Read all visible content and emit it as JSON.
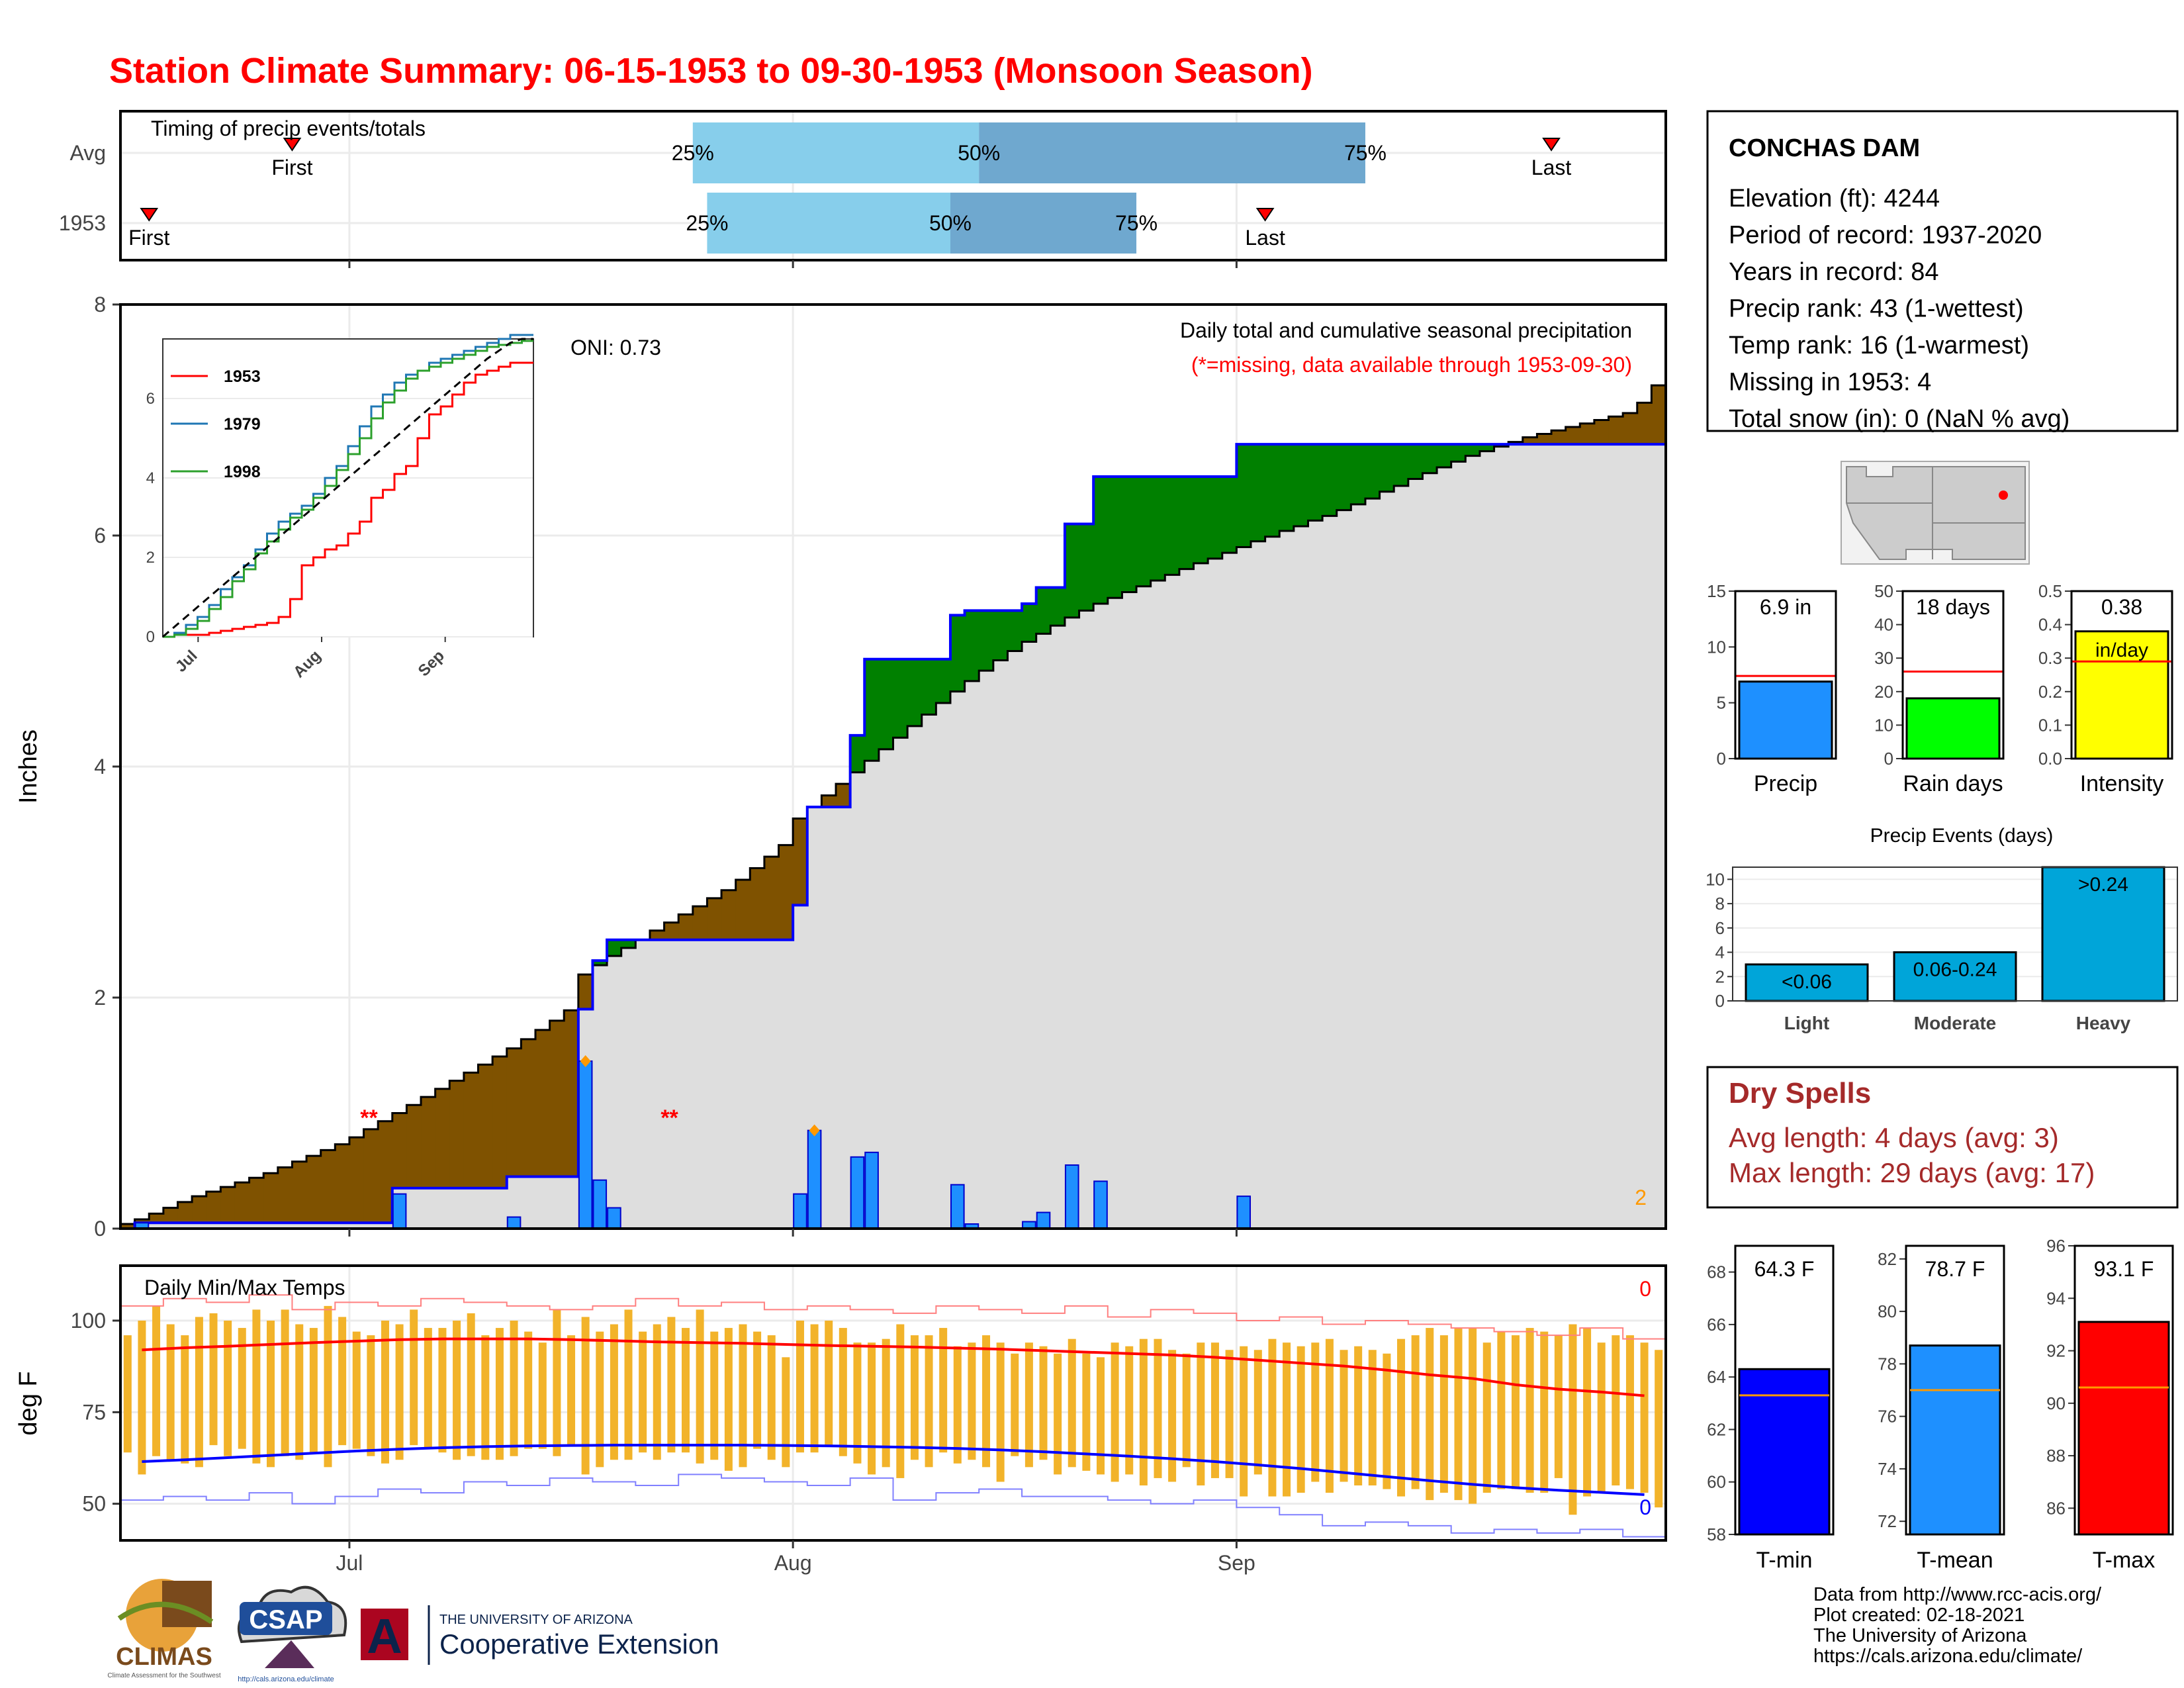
{
  "title": "Station Climate Summary: 06-15-1953 to 09-30-1953 (Monsoon Season)",
  "colors": {
    "title": "#ff0000",
    "precip_bar": "#1e90ff",
    "ahead": "#008000",
    "behind": "#7f5200",
    "climo_fill": "#dedede",
    "tmax": "#ff0000",
    "tmin": "#0000ff",
    "range_bar": "#f2b32a",
    "q_light": "#87ceeb",
    "q_dark": "#6fa8cf",
    "rain_days": "#00ff00",
    "intensity": "#ffff00",
    "tmin_bar": "#0000ff",
    "tmean_bar": "#1e90ff",
    "tmax_bar": "#ff0000",
    "events_bar": "#00a5d9",
    "dry_text": "#a52a2a"
  },
  "timing": {
    "title": "Timing of precip events/totals",
    "rows": [
      {
        "label": "Avg",
        "first_day": 12,
        "last_day": 100,
        "q25_day": 40,
        "q50_day": 60,
        "q75_day": 87
      },
      {
        "label": "1953",
        "first_day": 2,
        "last_day": 80,
        "q25_day": 41,
        "q50_day": 58,
        "q75_day": 71
      }
    ],
    "first_label": "First",
    "last_label": "Last",
    "q_labels": [
      "25%",
      "50%",
      "75%"
    ]
  },
  "axis": {
    "days_total": 108,
    "month_ticks": [
      {
        "label": "Jul",
        "day": 16
      },
      {
        "label": "Aug",
        "day": 47
      },
      {
        "label": "Sep",
        "day": 78
      }
    ]
  },
  "precip": {
    "ylabel": "Inches",
    "ylim": [
      0,
      8
    ],
    "yticks": [
      "0",
      "2",
      "4",
      "6",
      "8"
    ],
    "caption": "Daily total and cumulative seasonal precipitation",
    "missing_note": "(*=missing, data available through 1953-09-30)",
    "oni": "ONI: 0.73",
    "missing_marker": "**",
    "missing_days": [
      17,
      38
    ],
    "corner_count": "2",
    "daily": [
      {
        "day": 1,
        "value": 0.05
      },
      {
        "day": 19,
        "value": 0.3
      },
      {
        "day": 27,
        "value": 0.1
      },
      {
        "day": 32,
        "value": 1.45
      },
      {
        "day": 33,
        "value": 0.42
      },
      {
        "day": 34,
        "value": 0.18
      },
      {
        "day": 47,
        "value": 0.3
      },
      {
        "day": 48,
        "value": 0.85
      },
      {
        "day": 51,
        "value": 0.62
      },
      {
        "day": 52,
        "value": 0.66
      },
      {
        "day": 58,
        "value": 0.38
      },
      {
        "day": 59,
        "value": 0.04
      },
      {
        "day": 63,
        "value": 0.06
      },
      {
        "day": 64,
        "value": 0.14
      },
      {
        "day": 66,
        "value": 0.55
      },
      {
        "day": 68,
        "value": 0.41
      },
      {
        "day": 78,
        "value": 0.28
      }
    ],
    "diamond_days": [
      32,
      48
    ],
    "climo_cum": [
      0.04,
      0.08,
      0.13,
      0.18,
      0.23,
      0.28,
      0.32,
      0.36,
      0.4,
      0.44,
      0.48,
      0.53,
      0.58,
      0.63,
      0.68,
      0.73,
      0.79,
      0.86,
      0.93,
      1.0,
      1.07,
      1.14,
      1.21,
      1.28,
      1.35,
      1.42,
      1.49,
      1.56,
      1.64,
      1.72,
      1.8,
      1.89,
      2.2,
      2.28,
      2.36,
      2.43,
      2.5,
      2.58,
      2.65,
      2.72,
      2.79,
      2.86,
      2.93,
      3.02,
      3.12,
      3.22,
      3.32,
      3.55,
      3.65,
      3.75,
      3.85,
      3.95,
      4.05,
      4.15,
      4.25,
      4.35,
      4.45,
      4.55,
      4.65,
      4.74,
      4.83,
      4.92,
      5.0,
      5.08,
      5.15,
      5.22,
      5.29,
      5.35,
      5.41,
      5.46,
      5.51,
      5.56,
      5.61,
      5.66,
      5.71,
      5.76,
      5.8,
      5.85,
      5.9,
      5.95,
      5.99,
      6.04,
      6.08,
      6.13,
      6.17,
      6.22,
      6.27,
      6.32,
      6.38,
      6.43,
      6.49,
      6.54,
      6.59,
      6.64,
      6.69,
      6.73,
      6.77,
      6.81,
      6.85,
      6.88,
      6.91,
      6.94,
      6.97,
      7.0,
      7.03,
      7.06,
      7.15,
      7.3
    ],
    "legend_inset": {
      "ylim": [
        0,
        7.5
      ],
      "yticks": [
        "0",
        "2",
        "4",
        "6"
      ],
      "xticks": [
        "Jul",
        "Aug",
        "Sep"
      ],
      "series": [
        {
          "name": "1953",
          "color": "#ff0000",
          "values": [
            0,
            0.05,
            0.05,
            0.05,
            0.1,
            0.15,
            0.2,
            0.25,
            0.3,
            0.35,
            0.5,
            0.95,
            1.8,
            2.0,
            2.2,
            2.3,
            2.6,
            2.9,
            3.5,
            3.7,
            4.1,
            4.3,
            5.0,
            5.6,
            5.8,
            6.1,
            6.4,
            6.6,
            6.7,
            6.8,
            6.9,
            6.9
          ]
        },
        {
          "name": "1979",
          "color": "#1f77b4",
          "values": [
            0,
            0.1,
            0.3,
            0.5,
            0.8,
            1.2,
            1.5,
            1.8,
            2.2,
            2.6,
            2.9,
            3.1,
            3.3,
            3.6,
            4.0,
            4.3,
            4.8,
            5.3,
            5.8,
            6.1,
            6.4,
            6.6,
            6.7,
            6.9,
            7.0,
            7.1,
            7.2,
            7.3,
            7.4,
            7.5,
            7.6,
            7.6
          ]
        },
        {
          "name": "1998",
          "color": "#2ca02c",
          "values": [
            0,
            0.05,
            0.2,
            0.4,
            0.7,
            1.0,
            1.4,
            1.7,
            2.1,
            2.4,
            2.7,
            3.0,
            3.2,
            3.5,
            3.8,
            4.2,
            4.6,
            5.0,
            5.5,
            5.9,
            6.2,
            6.5,
            6.7,
            6.8,
            6.9,
            7.0,
            7.1,
            7.2,
            7.3,
            7.35,
            7.4,
            7.45
          ]
        },
        {
          "name": "",
          "color": "#000000",
          "dashed": true,
          "values": [
            0,
            0.25,
            0.5,
            0.75,
            1.0,
            1.25,
            1.5,
            1.75,
            2.0,
            2.25,
            2.5,
            2.75,
            3.0,
            3.25,
            3.5,
            3.75,
            4.0,
            4.25,
            4.5,
            4.75,
            5.0,
            5.25,
            5.5,
            5.75,
            6.0,
            6.25,
            6.5,
            6.75,
            7.0,
            7.2,
            7.4,
            7.5
          ]
        }
      ]
    }
  },
  "temps": {
    "title": "Daily Min/Max Temps",
    "ylabel": "deg F",
    "ylim": [
      40,
      115
    ],
    "yticks": [
      "50",
      "75",
      "100"
    ],
    "count_max": "0",
    "count_min": "0",
    "tmax_climo": [
      92,
      92.6,
      93,
      93.5,
      94,
      94.4,
      94.8,
      95,
      95,
      95,
      94.8,
      94.5,
      94.2,
      94,
      93.8,
      93.5,
      93.2,
      93,
      92.8,
      92.5,
      92.2,
      91.8,
      91.4,
      91,
      90.6,
      90,
      89.2,
      88.4,
      87.6,
      86.5,
      85.2,
      84.2,
      82.5,
      81.3,
      80.5,
      79.5
    ],
    "tmin_climo": [
      61.5,
      62,
      62.6,
      63.2,
      63.8,
      64.4,
      64.9,
      65.3,
      65.6,
      65.8,
      65.9,
      66,
      66,
      66,
      66,
      65.9,
      65.8,
      65.6,
      65.4,
      65.1,
      64.7,
      64.2,
      63.6,
      63,
      62.3,
      61.5,
      60.6,
      59.6,
      58.5,
      57.4,
      56.3,
      55.3,
      54.4,
      53.7,
      53.1,
      52.5
    ],
    "tmax_record": [
      104,
      106,
      105,
      107,
      103,
      105,
      104,
      106,
      105,
      104,
      103,
      104,
      106,
      104,
      105,
      103,
      104,
      103,
      102,
      104,
      103,
      102,
      104,
      101,
      103,
      102,
      100,
      101,
      99,
      100,
      99,
      98,
      97,
      96,
      98,
      95
    ],
    "tmin_record": [
      51,
      52,
      51,
      53,
      50,
      52,
      54,
      53,
      56,
      55,
      57,
      56,
      55,
      58,
      57,
      56,
      55,
      57,
      51,
      53,
      54,
      52,
      52,
      51,
      50,
      51,
      49,
      47,
      44,
      45,
      44,
      42,
      43,
      42,
      43,
      41
    ],
    "daily_range": [
      [
        64,
        96
      ],
      [
        58,
        100
      ],
      [
        63,
        104
      ],
      [
        62,
        99
      ],
      [
        61,
        96
      ],
      [
        60,
        101
      ],
      [
        66,
        102
      ],
      [
        63,
        100
      ],
      [
        65,
        98
      ],
      [
        61,
        103
      ],
      [
        60,
        100
      ],
      [
        63,
        103
      ],
      [
        62,
        99
      ],
      [
        64,
        98
      ],
      [
        60,
        104
      ],
      [
        66,
        101
      ],
      [
        65,
        97
      ],
      [
        63,
        96
      ],
      [
        61,
        100
      ],
      [
        62,
        99
      ],
      [
        66,
        103
      ],
      [
        65,
        98
      ],
      [
        64,
        98
      ],
      [
        62,
        100
      ],
      [
        63,
        102
      ],
      [
        62,
        96
      ],
      [
        62,
        98
      ],
      [
        63,
        100
      ],
      [
        65,
        97
      ],
      [
        65,
        94
      ],
      [
        63,
        103
      ],
      [
        66,
        96
      ],
      [
        58,
        101
      ],
      [
        60,
        97
      ],
      [
        62,
        99
      ],
      [
        62,
        103
      ],
      [
        64,
        97
      ],
      [
        62,
        99
      ],
      [
        64,
        101
      ],
      [
        64,
        98
      ],
      [
        61,
        103
      ],
      [
        62,
        97
      ],
      [
        59,
        98
      ],
      [
        60,
        99
      ],
      [
        65,
        97
      ],
      [
        62,
        96
      ],
      [
        60,
        90
      ],
      [
        64,
        100
      ],
      [
        64,
        99
      ],
      [
        66,
        100
      ],
      [
        63,
        98
      ],
      [
        61,
        94
      ],
      [
        58,
        94
      ],
      [
        60,
        95
      ],
      [
        57,
        99
      ],
      [
        62,
        96
      ],
      [
        60,
        96
      ],
      [
        64,
        98
      ],
      [
        61,
        93
      ],
      [
        62,
        94
      ],
      [
        60,
        96
      ],
      [
        56,
        94
      ],
      [
        63,
        91
      ],
      [
        60,
        94
      ],
      [
        62,
        93
      ],
      [
        58,
        91
      ],
      [
        60,
        95
      ],
      [
        59,
        91
      ],
      [
        58,
        90
      ],
      [
        56,
        94
      ],
      [
        58,
        93
      ],
      [
        55,
        95
      ],
      [
        57,
        95
      ],
      [
        56,
        92
      ],
      [
        60,
        91
      ],
      [
        55,
        94
      ],
      [
        57,
        94
      ],
      [
        57,
        92
      ],
      [
        52,
        93
      ],
      [
        58,
        92
      ],
      [
        52,
        95
      ],
      [
        52,
        94
      ],
      [
        53,
        93
      ],
      [
        56,
        94
      ],
      [
        53,
        95
      ],
      [
        56,
        92
      ],
      [
        55,
        93
      ],
      [
        55,
        92
      ],
      [
        54,
        91
      ],
      [
        52,
        95
      ],
      [
        54,
        96
      ],
      [
        51,
        98
      ],
      [
        53,
        96
      ],
      [
        51,
        98
      ],
      [
        50,
        98
      ],
      [
        53,
        94
      ],
      [
        54,
        97
      ],
      [
        54,
        96
      ],
      [
        53,
        98
      ],
      [
        53,
        97
      ],
      [
        57,
        96
      ],
      [
        47,
        99
      ],
      [
        52,
        98
      ],
      [
        53,
        94
      ],
      [
        55,
        96
      ],
      [
        54,
        96
      ],
      [
        53,
        94
      ],
      [
        49,
        92
      ]
    ]
  },
  "station": {
    "name": "CONCHAS DAM",
    "lines": [
      "Elevation (ft): 4244",
      "Period of record: 1937-2020",
      "Years in record: 84",
      "Precip rank: 43 (1-wettest)",
      "Temp rank: 16 (1-warmest)",
      "Missing in 1953: 4",
      "Total snow (in): 0 (NaN % avg)"
    ]
  },
  "mini_bars": [
    {
      "label": "Precip",
      "value_text": "6.9 in",
      "value": 6.9,
      "avg": 7.4,
      "ylim": [
        0,
        15
      ],
      "yticks": [
        "0",
        "5",
        "10",
        "15"
      ],
      "color": "#1e90ff"
    },
    {
      "label": "Rain days",
      "value_text": "18 days",
      "value": 18,
      "avg": 26,
      "ylim": [
        0,
        50
      ],
      "yticks": [
        "0",
        "10",
        "20",
        "30",
        "40",
        "50"
      ],
      "color": "#00ff00"
    },
    {
      "label": "Intensity",
      "value_text": "0.38",
      "unit_text": "in/day",
      "value": 0.38,
      "avg": 0.29,
      "ylim": [
        0,
        0.5
      ],
      "yticks": [
        "0.0",
        "0.1",
        "0.2",
        "0.3",
        "0.4",
        "0.5"
      ],
      "color": "#ffff00"
    }
  ],
  "events": {
    "title": "Precip Events (days)",
    "ylim": [
      0,
      11
    ],
    "yticks": [
      "0",
      "2",
      "4",
      "6",
      "8",
      "10"
    ],
    "categories": [
      "Light",
      "Moderate",
      "Heavy"
    ],
    "bar_labels": [
      "<0.06",
      "0.06-0.24",
      ">0.24"
    ],
    "values": [
      3,
      4,
      11
    ]
  },
  "dry_spells": {
    "title": "Dry Spells",
    "avg_line": "Avg length: 4 days (avg: 3)",
    "max_line": "Max length: 29 days (avg: 17)"
  },
  "temp_bars": [
    {
      "label": "T-min",
      "value_text": "64.3 F",
      "value": 64.3,
      "avg": 63.3,
      "ylim": [
        58,
        69
      ],
      "yticks": [
        "58",
        "60",
        "62",
        "64",
        "66",
        "68"
      ],
      "color": "#0000ff"
    },
    {
      "label": "T-mean",
      "value_text": "78.7 F",
      "value": 78.7,
      "avg": 77.0,
      "ylim": [
        71.5,
        82.5
      ],
      "yticks": [
        "72",
        "74",
        "76",
        "78",
        "80",
        "82"
      ],
      "color": "#1e90ff"
    },
    {
      "label": "T-max",
      "value_text": "93.1 F",
      "value": 93.1,
      "avg": 90.6,
      "ylim": [
        85,
        96
      ],
      "yticks": [
        "86",
        "88",
        "90",
        "92",
        "94",
        "96"
      ],
      "color": "#ff0000"
    }
  ],
  "credits": [
    "Data from http://www.rcc-acis.org/",
    "Plot created: 02-18-2021",
    "The University of Arizona",
    "https://cals.arizona.edu/climate/"
  ],
  "logos": {
    "climas": "CLIMAS",
    "climas_sub": "Climate Assessment for the Southwest",
    "csap": "CSAP",
    "csap_url": "http://cals.arizona.edu/climate",
    "ua_small": "THE UNIVERSITY OF ARIZONA",
    "ua_big": "Cooperative Extension"
  }
}
